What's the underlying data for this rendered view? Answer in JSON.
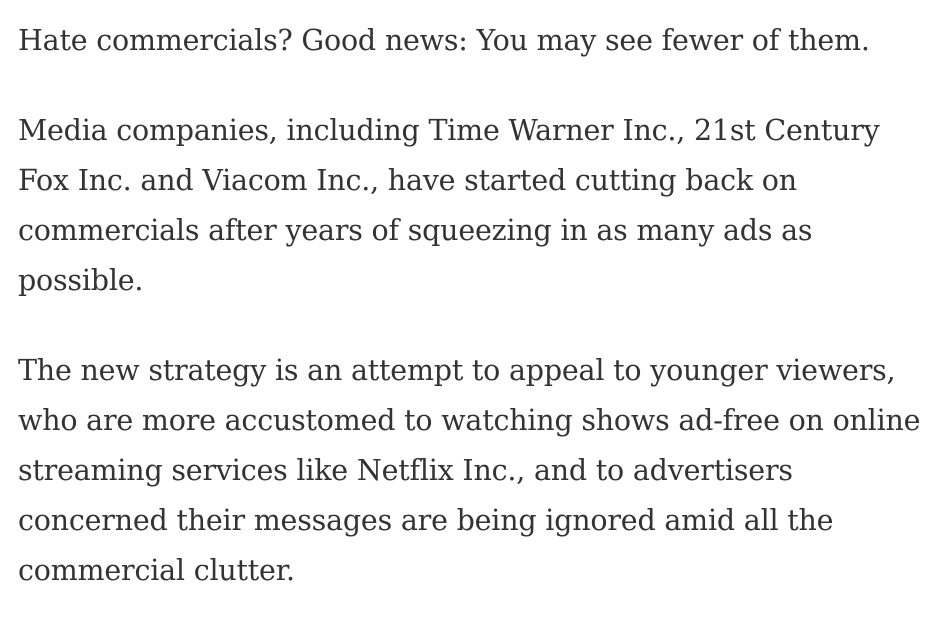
{
  "article": {
    "paragraphs": [
      "Hate commercials? Good news: You may see fewer of them.",
      "Media companies, including Time Warner Inc., 21st Century Fox Inc. and Viacom Inc., have started cutting back on commercials after years of squeezing in as many ads as possible.",
      "The new strategy is an attempt to appeal to younger viewers, who are more accustomed to watching shows ad-free on online streaming services like Netflix Inc., and to advertisers concerned their messages are being ignored amid all the commercial clutter."
    ]
  },
  "colors": {
    "text": "#333333",
    "background": "#ffffff"
  }
}
